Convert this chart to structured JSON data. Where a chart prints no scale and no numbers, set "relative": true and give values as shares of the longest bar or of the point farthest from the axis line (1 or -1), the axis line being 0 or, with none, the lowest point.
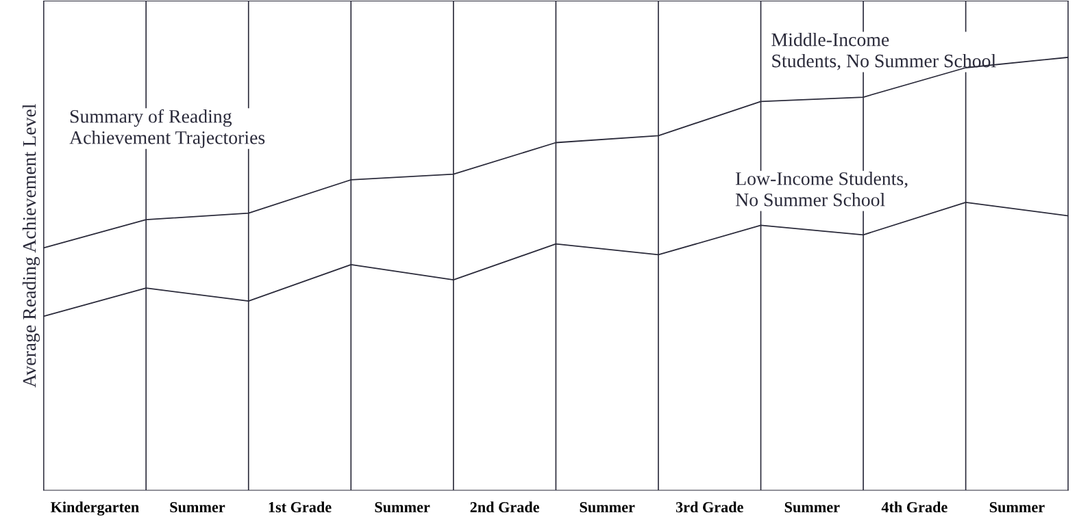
{
  "chart_data": {
    "type": "line",
    "relative": true,
    "title": "Summary of Reading\nAchievement Trajectories",
    "ylabel": "Average Reading Achievement Level",
    "categories": [
      null,
      null,
      null,
      null,
      null,
      null,
      null,
      null,
      null,
      null,
      null
    ],
    "annotations": [
      "Kindergarten",
      "Summer",
      "1st Grade",
      "Summer",
      "2nd Grade",
      "Summer",
      "3rd Grade",
      "Summer",
      "4th Grade",
      "Summer"
    ],
    "series": [
      {
        "name": "Middle-Income\nStudents, No Summer School",
        "color": "#2a2a3a",
        "values": [
          0.56,
          0.625,
          0.64,
          0.717,
          0.73,
          0.803,
          0.819,
          0.898,
          0.908,
          0.976,
          1
        ]
      },
      {
        "name": "Low-Income Students,\nNo Summer School",
        "color": "#2a2a3a",
        "values": [
          0.402,
          0.467,
          0.437,
          0.521,
          0.486,
          0.569,
          0.544,
          0.612,
          0.59,
          0.665,
          0.634
        ]
      }
    ],
    "grid": "x"
  }
}
